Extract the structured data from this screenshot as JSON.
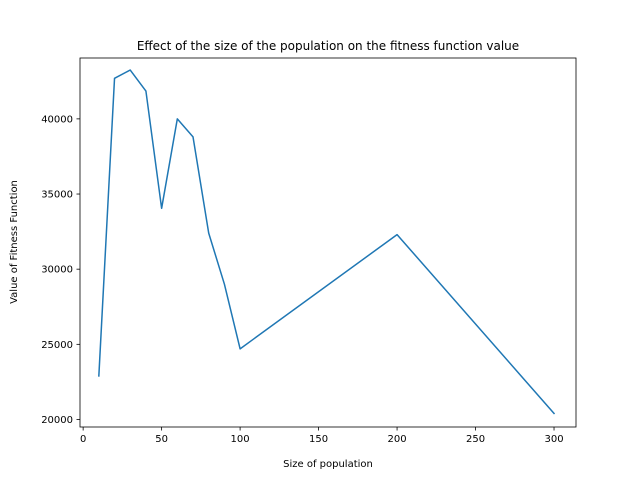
{
  "chart_data": {
    "type": "line",
    "title": "Effect of the size of the population on the fitness function value",
    "xlabel": "Size of population",
    "ylabel": "Value of Fitness Function",
    "xlim": [
      -2,
      314
    ],
    "ylim": [
      19500,
      44050
    ],
    "x_ticks": [
      0,
      50,
      100,
      150,
      200,
      250,
      300
    ],
    "x_tick_labels": [
      "0",
      "50",
      "100",
      "150",
      "200",
      "250",
      "300"
    ],
    "y_ticks": [
      20000,
      25000,
      30000,
      35000,
      40000
    ],
    "y_tick_labels": [
      "20000",
      "25000",
      "30000",
      "35000",
      "40000"
    ],
    "grid": false,
    "series": [
      {
        "color": "#1f77b4",
        "x": [
          10,
          20,
          30,
          40,
          50,
          60,
          70,
          80,
          90,
          100,
          200,
          300
        ],
        "y": [
          22900,
          42700,
          43250,
          41850,
          34050,
          40000,
          38800,
          32400,
          29000,
          24700,
          32300,
          20400
        ]
      }
    ]
  }
}
